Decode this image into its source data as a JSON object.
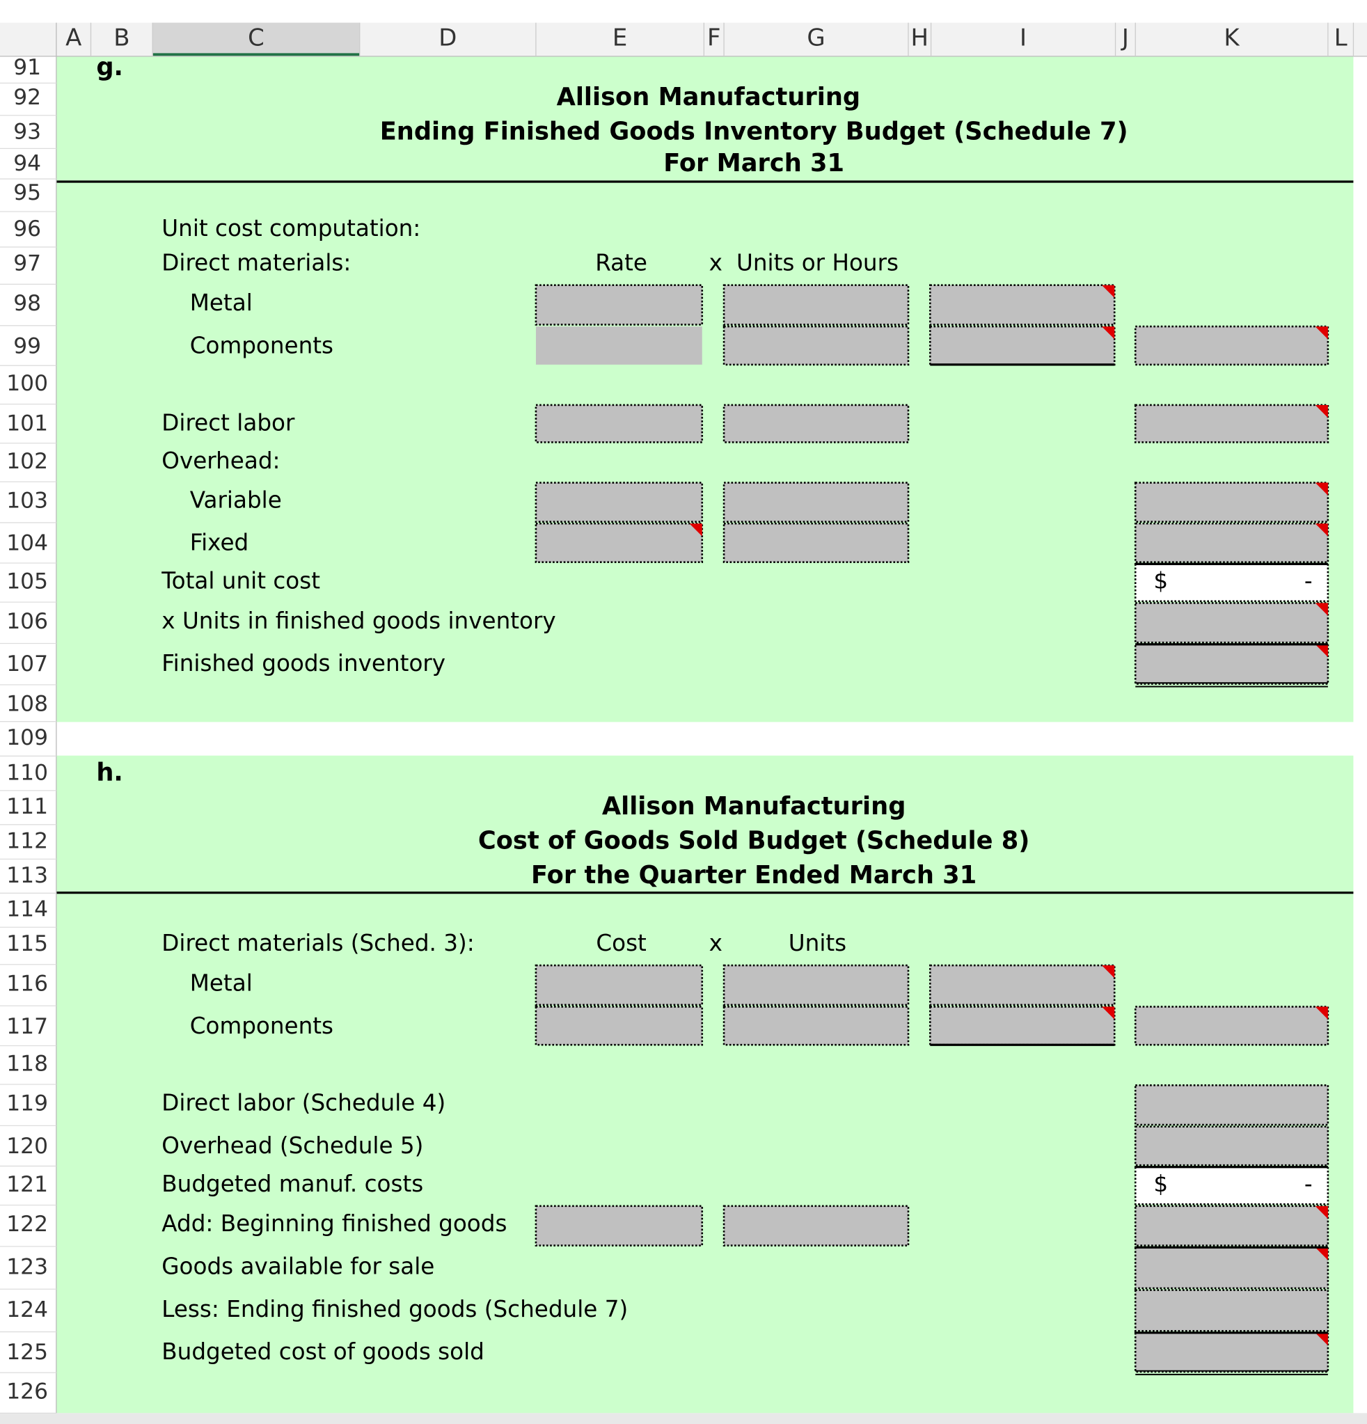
{
  "column_headers": [
    "A",
    "B",
    "C",
    "D",
    "E",
    "F",
    "G",
    "H",
    "I",
    "J",
    "K",
    "L"
  ],
  "row_numbers": [
    91,
    92,
    93,
    94,
    95,
    96,
    97,
    98,
    99,
    100,
    101,
    102,
    103,
    104,
    105,
    106,
    107,
    108,
    109,
    110,
    111,
    112,
    113,
    114,
    115,
    116,
    117,
    118,
    119,
    120,
    121,
    122,
    123,
    124,
    125,
    126
  ],
  "sections": [
    {
      "letter": "g.",
      "company": "Allison Manufacturing",
      "title": "Ending Finished Goods Inventory Budget (Schedule 7)",
      "period": "For March 31",
      "column_labels": [
        "Rate",
        "x",
        "Units or Hours"
      ],
      "lines": [
        "Unit cost computation:",
        "Direct materials:",
        "Metal",
        "Components",
        "Direct labor",
        "Overhead:",
        "Variable",
        "Fixed",
        "Total unit cost",
        "x Units in finished goods inventory",
        "Finished goods inventory"
      ],
      "total_cell": [
        "$",
        "-"
      ]
    },
    {
      "letter": "h.",
      "company": "Allison Manufacturing",
      "title": "Cost of Goods Sold Budget (Schedule 8)",
      "period": "For the Quarter Ended March 31",
      "column_labels": [
        "Cost",
        "x",
        "Units"
      ],
      "lines": [
        "Direct materials (Sched. 3):",
        "Metal",
        "Components",
        "Direct labor (Schedule 4)",
        "Overhead (Schedule 5)",
        "Budgeted manuf. costs",
        "Add: Beginning finished goods",
        "Goods available for sale",
        "Less: Ending finished goods (Schedule 7)",
        "Budgeted cost of goods sold"
      ],
      "total_cell": [
        "$",
        "-"
      ]
    }
  ]
}
